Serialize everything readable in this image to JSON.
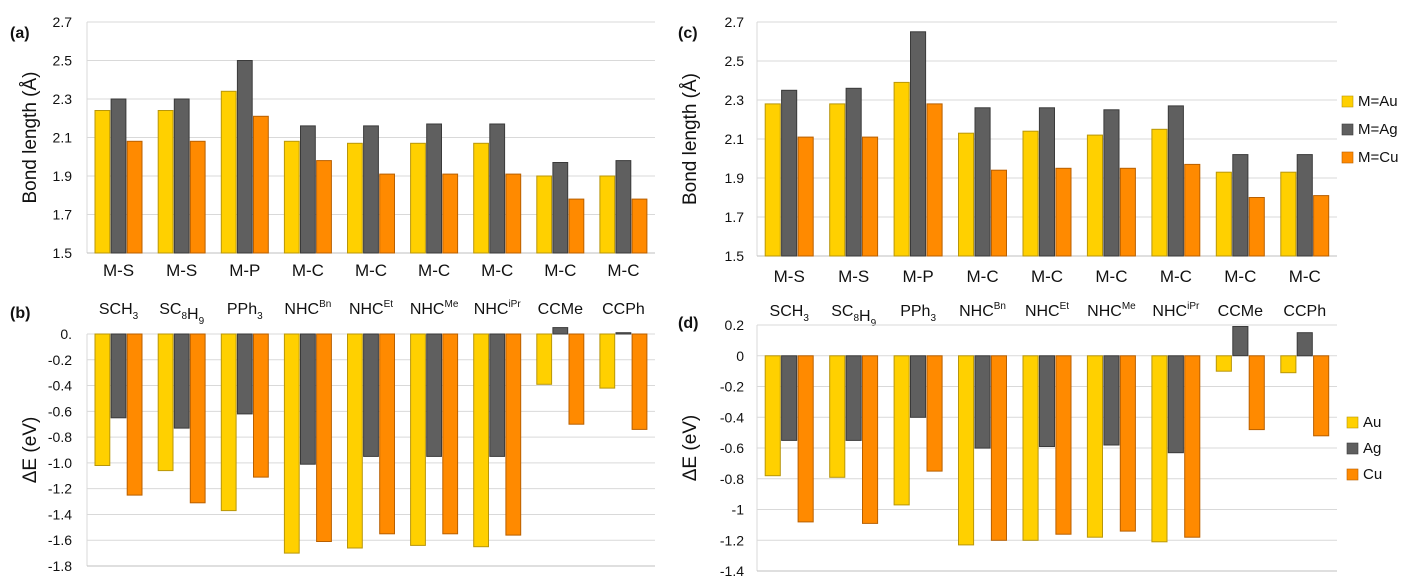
{
  "colors": {
    "au": "#FFD000",
    "au_stroke": "#B8960A",
    "ag": "#5F5F5F",
    "ag_stroke": "#3A3A3A",
    "cu": "#FF8A00",
    "cu_stroke": "#B85F00",
    "grid": "#D9D9D9"
  },
  "ligands": [
    "SCH3",
    "SC8H9",
    "PPh3",
    "NHC^Bn",
    "NHC^Et",
    "NHC^Me",
    "NHC^iPr",
    "CCMe",
    "CCPh"
  ],
  "chart_data": [
    {
      "panel": "(a)",
      "type": "bar",
      "ylabel": "Bond length (Å)",
      "ylim": [
        1.5,
        2.7
      ],
      "yticks": [
        "1.5",
        "1.7",
        "1.9",
        "2.1",
        "2.3",
        "2.5",
        "2.7"
      ],
      "categories": [
        "M-S",
        "M-S",
        "M-P",
        "M-C",
        "M-C",
        "M-C",
        "M-C",
        "M-C",
        "M-C"
      ],
      "series": [
        {
          "values": [
            2.24,
            2.24,
            2.34,
            2.08,
            2.07,
            2.07,
            2.07,
            1.9,
            1.9
          ]
        },
        {
          "values": [
            2.3,
            2.3,
            2.5,
            2.16,
            2.16,
            2.17,
            2.17,
            1.97,
            1.98
          ]
        },
        {
          "values": [
            2.08,
            2.08,
            2.21,
            1.98,
            1.91,
            1.91,
            1.91,
            1.78,
            1.78
          ]
        }
      ],
      "grid": true
    },
    {
      "panel": "(b)",
      "type": "bar",
      "ylabel": "ΔE (eV)",
      "ylim": [
        -1.8,
        0
      ],
      "yticks": [
        "0.",
        "-0.2",
        "-0.4",
        "-0.6",
        "-0.8",
        "-1.0",
        "-1.2",
        "-1.4",
        "-1.6",
        "-1.8"
      ],
      "categories": [
        "SCH3",
        "SC8H9",
        "PPh3",
        "NHC^Bn",
        "NHC^Et",
        "NHC^Me",
        "NHC^iPr",
        "CCMe",
        "CCPh"
      ],
      "series": [
        {
          "values": [
            -1.02,
            -1.06,
            -1.37,
            -1.7,
            -1.66,
            -1.64,
            -1.65,
            -0.39,
            -0.42
          ]
        },
        {
          "values": [
            -0.65,
            -0.73,
            -0.62,
            -1.01,
            -0.95,
            -0.95,
            -0.95,
            0.05,
            0.01
          ]
        },
        {
          "values": [
            -1.25,
            -1.31,
            -1.11,
            -1.61,
            -1.55,
            -1.55,
            -1.56,
            -0.7,
            -0.74
          ]
        }
      ],
      "grid": true
    },
    {
      "panel": "(c)",
      "type": "bar",
      "ylabel": "Bond length (Å)",
      "ylim": [
        1.5,
        2.7
      ],
      "yticks": [
        "1.5",
        "1.7",
        "1.9",
        "2.1",
        "2.3",
        "2.5",
        "2.7"
      ],
      "categories": [
        "M-S",
        "M-S",
        "M-P",
        "M-C",
        "M-C",
        "M-C",
        "M-C",
        "M-C",
        "M-C"
      ],
      "series": [
        {
          "name": "M=Au",
          "values": [
            2.28,
            2.28,
            2.39,
            2.13,
            2.14,
            2.12,
            2.15,
            1.93,
            1.93
          ]
        },
        {
          "name": "M=Ag",
          "values": [
            2.35,
            2.36,
            2.65,
            2.26,
            2.26,
            2.25,
            2.27,
            2.02,
            2.02
          ]
        },
        {
          "name": "M=Cu",
          "values": [
            2.11,
            2.11,
            2.28,
            1.94,
            1.95,
            1.95,
            1.97,
            1.8,
            1.81
          ]
        }
      ],
      "legend": "right",
      "grid": true
    },
    {
      "panel": "(d)",
      "type": "bar",
      "ylabel": "ΔE (eV)",
      "ylim": [
        -1.4,
        0.2
      ],
      "yticks": [
        "0.2",
        "0",
        "-0.2",
        "-0.4",
        "-0.6",
        "-0.8",
        "-1",
        "-1.2",
        "-1.4"
      ],
      "categories": [
        "SCH3",
        "SC8H9",
        "PPh3",
        "NHC^Bn",
        "NHC^Et",
        "NHC^Me",
        "NHC^iPr",
        "CCMe",
        "CCPh"
      ],
      "series": [
        {
          "name": "Au",
          "values": [
            -0.78,
            -0.79,
            -0.97,
            -1.23,
            -1.2,
            -1.18,
            -1.21,
            -0.1,
            -0.11
          ]
        },
        {
          "name": "Ag",
          "values": [
            -0.55,
            -0.55,
            -0.4,
            -0.6,
            -0.59,
            -0.58,
            -0.63,
            0.19,
            0.15
          ]
        },
        {
          "name": "Cu",
          "values": [
            -1.08,
            -1.09,
            -0.75,
            -1.2,
            -1.16,
            -1.14,
            -1.18,
            -0.48,
            -0.52
          ]
        }
      ],
      "legend": "right",
      "grid": true
    }
  ]
}
